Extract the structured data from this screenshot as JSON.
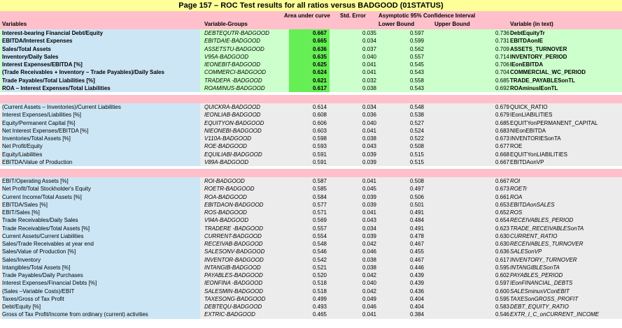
{
  "title": "Page 157 – ROC Test results for all ratios versus BADGOOD (01STATUS)",
  "header": {
    "variables": "Variables",
    "groups": "Variable-Groups",
    "area": "Area under curve",
    "stderr": "Std. Error",
    "ci": "Asymptotic 95% Confidence Interval",
    "lower": "Lower Bound",
    "upper": "Upper Bound",
    "text": "Variable (in text)"
  },
  "blocks": [
    {
      "rows": [
        {
          "var": "Interest-bearing Financial Debt/Equity",
          "group": "DEBTEQUTR-BADGOOD",
          "area": "0.667",
          "se": "0.035",
          "lb": "0.597",
          "ub": "0.736",
          "txt": "DebtEquityTr"
        },
        {
          "var": "EBITDA/Interest Expenses",
          "group": "EBITDAIE-BADGOOD",
          "area": "0.665",
          "se": "0.034",
          "lb": "0.599",
          "ub": "0.731",
          "txt": "EBITDAonIE"
        },
        {
          "var": "Sales/Total Assets",
          "group": "ASSETSTU-BADGOOD",
          "area": "0.636",
          "se": "0.037",
          "lb": "0.562",
          "ub": "0.709",
          "txt": "ASSETS_TURNOVER"
        },
        {
          "var": "Inventory/Daily Sales",
          "group": "V95A-BADGOOD",
          "area": "0.635",
          "se": "0.040",
          "lb": "0.557",
          "ub": "0.714",
          "txt": "INVENTORY_PERIOD"
        },
        {
          "var": "Interest Expenses/EBITDA [%]",
          "group": "IEONEBIT-BADGOOD",
          "area": "0.625",
          "se": "0.041",
          "lb": "0.545",
          "ub": "0.706",
          "txt": "IEonEBITDA"
        },
        {
          "var": "(Trade Receivables + Inventory – Trade Payables)/Daily Sales",
          "group": "COMMERCI-BADGOOD",
          "area": "0.624",
          "se": "0.041",
          "lb": "0.543",
          "ub": "0.704",
          "txt": "COMMERCIAL_WC_PERIOD"
        },
        {
          "var": "Trade Payables/Total Liabilities [%]",
          "group": "TRADEPA -BADGOOD",
          "area": "0.621",
          "se": "0.032",
          "lb": "0.558",
          "ub": "0.685",
          "txt": "TRADE_PAYABLESonTL"
        },
        {
          "var": "ROA –  Interest Expenses/Total Liabilities",
          "group": "ROAMINUS-BADGOOD",
          "area": "0.617",
          "se": "0.038",
          "lb": "0.543",
          "ub": "0.692",
          "txt": "ROAminusIEonTL"
        }
      ]
    },
    {
      "rows": [
        {
          "var": "(Current Assets – Inventories)/Current Liabilities",
          "group": "QUICKRA-BADGOOD",
          "area": "0.614",
          "se": "0.034",
          "lb": "0.548",
          "ub": "0.679",
          "txt": "QUICK_RATIO"
        },
        {
          "var": "Interest Expenses/Liabilities [%]",
          "group": "IEONLIAB-BADGOOD",
          "area": "0.608",
          "se": "0.036",
          "lb": "0.538",
          "ub": "0.679",
          "txt": "IEonLIABILITIES"
        },
        {
          "var": "Equity/Permanent Capital [%]",
          "group": "EQUITYON-BADGOOD",
          "area": "0.606",
          "se": "0.040",
          "lb": "0.527",
          "ub": "0.685",
          "txt": "EQUITYonPERMANENT_CAPITAL"
        },
        {
          "var": "Net Interest Expenses/EBITDA [%]",
          "group": "NIEONEBI-BADGOOD",
          "area": "0.603",
          "se": "0.041",
          "lb": "0.524",
          "ub": "0.683",
          "txt": "NIEonEBITDA"
        },
        {
          "var": "Inventories/Total Assets [%]",
          "group": "V110A-BADGOOD",
          "area": "0.598",
          "se": "0.038",
          "lb": "0.522",
          "ub": "0.673",
          "txt": "INVENTORIESonTA"
        },
        {
          "var": "Net Profit/Equity",
          "group": "ROE-BADGOOD",
          "area": "0.593",
          "se": "0.043",
          "lb": "0.508",
          "ub": "0.677",
          "txt": "ROE"
        },
        {
          "var": "Equity/Liabilities",
          "group": "EQUILIABI-BADGOOD",
          "area": "0.591",
          "se": "0.039",
          "lb": "0.515",
          "ub": "0.668",
          "txt": "EQUITYonLIABILITIES"
        },
        {
          "var": "EBITDA/Value of Production",
          "group": "V89A-BADGOOD",
          "area": "0.591",
          "se": "0.039",
          "lb": "0.515",
          "ub": "0.667",
          "txt": "EBITDAonVP"
        }
      ]
    },
    {
      "rows": [
        {
          "var": "EBIT/Operating Assets [%]",
          "group": "ROI-BADGOOD",
          "area": "0.587",
          "se": "0.041",
          "lb": "0.508",
          "ub": "0.667",
          "txt": "ROI"
        },
        {
          "var": "Net Profit/Total Stockholder's Equity",
          "group": "ROETR-BADGOOD",
          "area": "0.585",
          "se": "0.045",
          "lb": "0.497",
          "ub": "0.673",
          "txt": "ROETr"
        },
        {
          "var": "Current Income/Total Assets [%]",
          "group": "ROA-BADGOOD",
          "area": "0.584",
          "se": "0.039",
          "lb": "0.506",
          "ub": "0.661",
          "txt": "ROA"
        },
        {
          "var": "EBITDA/Sales [%]",
          "group": "EBITDAON-BADGOOD",
          "area": "0.577",
          "se": "0.039",
          "lb": "0.501",
          "ub": "0.653",
          "txt": "EBITDAonSALES"
        },
        {
          "var": "EBIT/Sales [%]",
          "group": "ROS-BADGOOD",
          "area": "0.571",
          "se": "0.041",
          "lb": "0.491",
          "ub": "0.652",
          "txt": "ROS"
        },
        {
          "var": "Trade Receivables/Daily Sales",
          "group": "V94A-BADGOOD",
          "area": "0.569",
          "se": "0.043",
          "lb": "0.484",
          "ub": "0.654",
          "txt": "RECEIVABLES_PERIOD"
        },
        {
          "var": "Trade Receivables/Total Assets [%]",
          "group": "TRADERE -BADGOOD",
          "area": "0.557",
          "se": "0.034",
          "lb": "0.491",
          "ub": "0.623",
          "txt": "TRADE_RECEIVABLESonTA"
        },
        {
          "var": "Current Assets/Current Liabilities",
          "group": "CURRENT-BADGOOD",
          "area": "0.554",
          "se": "0.039",
          "lb": "0.478",
          "ub": "0.630",
          "txt": "CURRENT_RATIO"
        },
        {
          "var": "Sales/Trade Receivables at year end",
          "group": "RECEIVAB-BADGOOD",
          "area": "0.548",
          "se": "0.042",
          "lb": "0.467",
          "ub": "0.630",
          "txt": "RECEIVABLES_TURNOVER"
        },
        {
          "var": "Sales/Value of Production [%]",
          "group": "SALESONV-BADGOOD",
          "area": "0.546",
          "se": "0.046",
          "lb": "0.455",
          "ub": "0.636",
          "txt": "SALESonVP"
        },
        {
          "var": "Sales/Inventory",
          "group": "INVENTOR-BADGOOD",
          "area": "0.542",
          "se": "0.038",
          "lb": "0.467",
          "ub": "0.617",
          "txt": "INVENTORY_TURNOVER"
        },
        {
          "var": "Intangibles/Total Assets [%]",
          "group": "INTANGIB-BADGOOD",
          "area": "0.521",
          "se": "0.038",
          "lb": "0.446",
          "ub": "0.595",
          "txt": "INTANGIBLESonTA"
        },
        {
          "var": "Trade Payables/Daily Purchases",
          "group": "PAYABLES-BADGOOD",
          "area": "0.520",
          "se": "0.042",
          "lb": "0.439",
          "ub": "0.602",
          "txt": "PAYABLES_PERIOD"
        },
        {
          "var": "Interest Expenses/Financial Debts [%]",
          "group": "IEONFINA -BADGOOD",
          "area": "0.518",
          "se": "0.040",
          "lb": "0.439",
          "ub": "0.597",
          "txt": "IEonFINANCIAL_DEBTS"
        },
        {
          "var": "(Sales –Variable Costs)/EBIT",
          "group": "SALESMIN-BADGOOD",
          "area": "0.518",
          "se": "0.042",
          "lb": "0.436",
          "ub": "0.600",
          "txt": "SALESminusVConEBIT"
        },
        {
          "var": "Taxes/Gross of Tax Profit",
          "group": "TAXESONG-BADGOOD",
          "area": "0.499",
          "se": "0.049",
          "lb": "0.404",
          "ub": "0.595",
          "txt": "TAXESonGROSS_PROFIT"
        },
        {
          "var": "Debt/Equity [%]",
          "group": "DEBTEQU-BADGOOD",
          "area": "0.493",
          "se": "0.046",
          "lb": "0.404",
          "ub": "0.583",
          "txt": "DEBT_EQUITY_RATIO"
        },
        {
          "var": "Gross of Tax Profit/Income from ordinary (current) activities",
          "group": "EXTRIC-BADGOOD",
          "area": "0.465",
          "se": "0.041",
          "lb": "0.384",
          "ub": "0.546",
          "txt": "EXTR_I_C_onCURRENT_INCOME"
        }
      ]
    }
  ]
}
